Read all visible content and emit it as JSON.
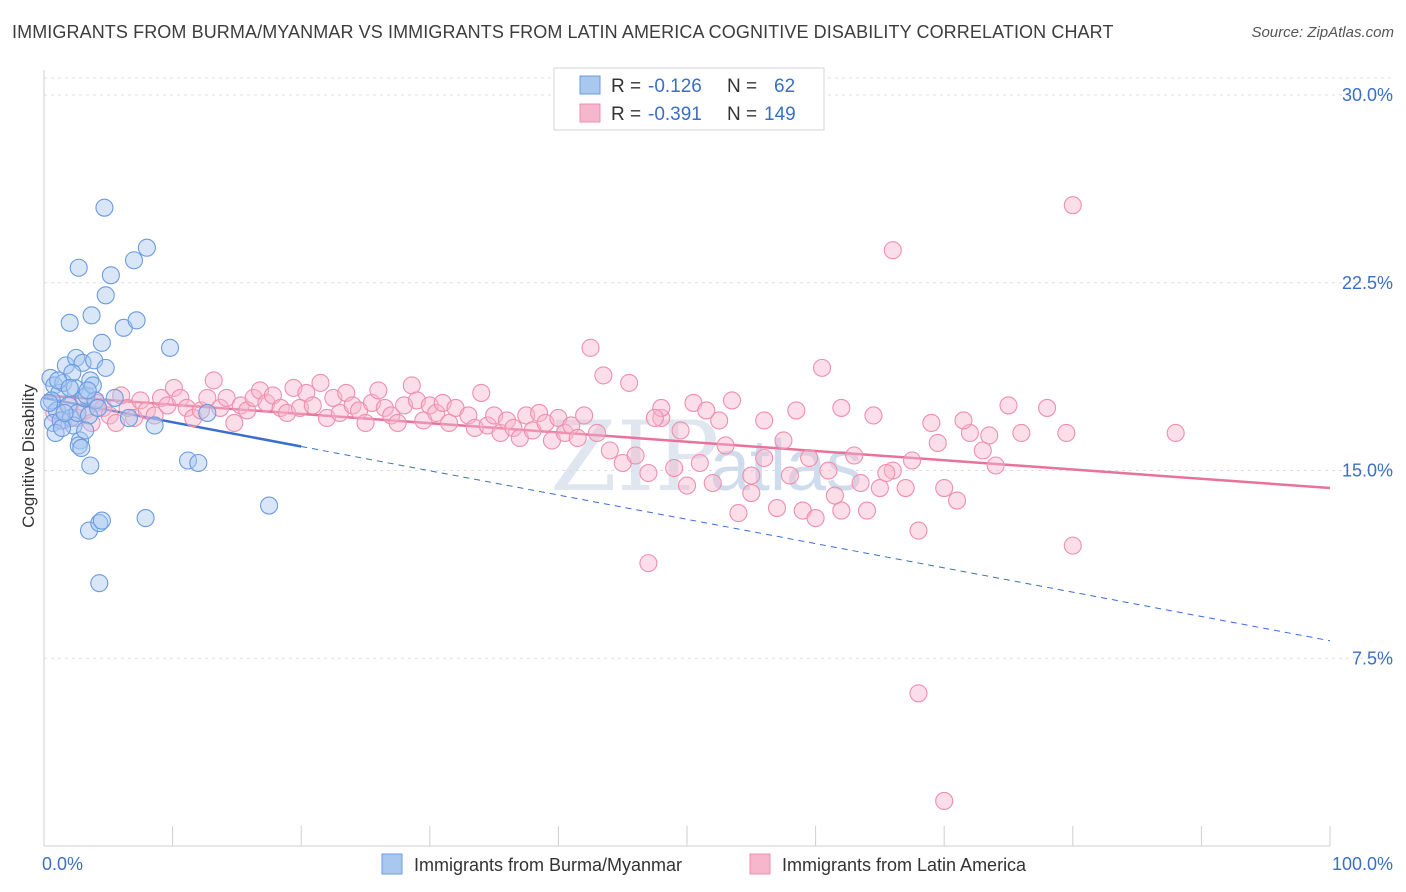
{
  "title": "IMMIGRANTS FROM BURMA/MYANMAR VS IMMIGRANTS FROM LATIN AMERICA COGNITIVE DISABILITY CORRELATION CHART",
  "source": "Source: ZipAtlas.com",
  "watermark": {
    "zip": "ZIP",
    "atlas": "atlas"
  },
  "colors": {
    "blue_fill": "#a9c8f0",
    "blue_stroke": "#6a9be0",
    "blue_line": "#3a6fd0",
    "pink_fill": "#f6b6cb",
    "pink_stroke": "#ee8fae",
    "pink_line": "#e8729a",
    "grid": "#dddddd",
    "tick_label": "#3b6fc4"
  },
  "legend": {
    "series": [
      {
        "r_label": "R =",
        "r_value": "-0.126",
        "n_label": "N =",
        "n_value": "62"
      },
      {
        "r_label": "R =",
        "r_value": "-0.391",
        "n_label": "N =",
        "n_value": "149"
      }
    ]
  },
  "chart_data": {
    "type": "scatter",
    "xlabel": "",
    "ylabel": "Cognitive Disability",
    "xlim": [
      0,
      100
    ],
    "ylim": [
      0,
      31
    ],
    "x_tick_labels": [
      "0.0%",
      "100.0%"
    ],
    "y_ticks": [
      7.5,
      15.0,
      22.5,
      30.0
    ],
    "y_tick_labels": [
      "7.5%",
      "15.0%",
      "22.5%",
      "30.0%"
    ],
    "grid": "horizontal dashed",
    "legend_position": "top-center",
    "series": [
      {
        "name": "Immigrants from Burma/Myanmar",
        "color": "#a9c8f0",
        "trend": {
          "x_start": 0,
          "y_start": 17.9,
          "x_solid_end": 20,
          "x_end": 100,
          "y_end": 8.2
        },
        "points": [
          [
            0.5,
            18.7
          ],
          [
            0.8,
            18.4
          ],
          [
            1.2,
            18.1
          ],
          [
            0.6,
            17.8
          ],
          [
            1.0,
            17.4
          ],
          [
            0.7,
            16.9
          ],
          [
            1.3,
            17.0
          ],
          [
            0.9,
            16.5
          ],
          [
            1.5,
            18.5
          ],
          [
            1.7,
            19.2
          ],
          [
            1.9,
            17.6
          ],
          [
            2.1,
            17.1
          ],
          [
            2.3,
            16.8
          ],
          [
            2.4,
            18.3
          ],
          [
            2.6,
            17.3
          ],
          [
            2.8,
            16.2
          ],
          [
            2.0,
            20.9
          ],
          [
            2.5,
            19.5
          ],
          [
            3.0,
            19.3
          ],
          [
            3.1,
            17.9
          ],
          [
            3.3,
            18.0
          ],
          [
            3.5,
            17.2
          ],
          [
            2.7,
            16.0
          ],
          [
            2.9,
            15.9
          ],
          [
            3.6,
            18.6
          ],
          [
            3.8,
            18.4
          ],
          [
            4.0,
            17.8
          ],
          [
            4.2,
            17.5
          ],
          [
            3.9,
            19.4
          ],
          [
            4.5,
            20.1
          ],
          [
            4.8,
            19.1
          ],
          [
            3.7,
            21.2
          ],
          [
            2.7,
            23.1
          ],
          [
            4.8,
            22.0
          ],
          [
            4.7,
            25.5
          ],
          [
            5.2,
            22.8
          ],
          [
            5.5,
            17.9
          ],
          [
            6.2,
            20.7
          ],
          [
            6.6,
            17.1
          ],
          [
            7.2,
            21.0
          ],
          [
            7.0,
            23.4
          ],
          [
            8.0,
            23.9
          ],
          [
            8.6,
            16.8
          ],
          [
            9.8,
            19.9
          ],
          [
            11.2,
            15.4
          ],
          [
            12.0,
            15.3
          ],
          [
            12.7,
            17.3
          ],
          [
            17.5,
            13.6
          ],
          [
            3.5,
            12.6
          ],
          [
            4.3,
            12.9
          ],
          [
            4.5,
            13.0
          ],
          [
            3.6,
            15.2
          ],
          [
            4.3,
            10.5
          ],
          [
            7.9,
            13.1
          ],
          [
            1.4,
            16.7
          ],
          [
            2.2,
            18.9
          ],
          [
            3.4,
            18.2
          ],
          [
            0.4,
            17.7
          ],
          [
            1.1,
            18.6
          ],
          [
            3.2,
            16.6
          ],
          [
            2.0,
            18.3
          ],
          [
            1.6,
            17.3
          ]
        ]
      },
      {
        "name": "Immigrants from Latin America",
        "color": "#f6b6cb",
        "trend": {
          "x_start": 0,
          "y_start": 18.0,
          "x_end": 100,
          "y_end": 14.3
        },
        "points": [
          [
            0.8,
            17.3
          ],
          [
            1.5,
            17.0
          ],
          [
            2.0,
            17.6
          ],
          [
            2.6,
            17.1
          ],
          [
            3.2,
            17.4
          ],
          [
            3.7,
            16.9
          ],
          [
            4.1,
            17.7
          ],
          [
            4.6,
            17.5
          ],
          [
            5.1,
            17.2
          ],
          [
            5.6,
            16.9
          ],
          [
            6.0,
            18.0
          ],
          [
            6.5,
            17.5
          ],
          [
            7.0,
            17.1
          ],
          [
            7.5,
            17.8
          ],
          [
            8.0,
            17.4
          ],
          [
            8.6,
            17.2
          ],
          [
            9.1,
            17.9
          ],
          [
            9.6,
            17.6
          ],
          [
            10.1,
            18.3
          ],
          [
            10.6,
            17.9
          ],
          [
            11.1,
            17.5
          ],
          [
            11.6,
            17.1
          ],
          [
            12.2,
            17.4
          ],
          [
            12.7,
            17.9
          ],
          [
            13.2,
            18.6
          ],
          [
            13.7,
            17.5
          ],
          [
            14.2,
            17.9
          ],
          [
            14.8,
            16.9
          ],
          [
            15.3,
            17.6
          ],
          [
            15.8,
            17.4
          ],
          [
            16.3,
            17.9
          ],
          [
            16.8,
            18.2
          ],
          [
            17.3,
            17.7
          ],
          [
            17.8,
            18.0
          ],
          [
            18.4,
            17.5
          ],
          [
            18.9,
            17.3
          ],
          [
            19.4,
            18.3
          ],
          [
            19.9,
            17.5
          ],
          [
            20.4,
            18.1
          ],
          [
            20.9,
            17.6
          ],
          [
            21.5,
            18.5
          ],
          [
            22.0,
            17.1
          ],
          [
            22.5,
            17.9
          ],
          [
            23.0,
            17.3
          ],
          [
            23.5,
            18.1
          ],
          [
            24.0,
            17.6
          ],
          [
            24.5,
            17.4
          ],
          [
            25.0,
            16.9
          ],
          [
            25.5,
            17.7
          ],
          [
            26.0,
            18.2
          ],
          [
            26.5,
            17.5
          ],
          [
            27.0,
            17.2
          ],
          [
            27.5,
            16.9
          ],
          [
            28.0,
            17.6
          ],
          [
            28.6,
            18.4
          ],
          [
            29.0,
            17.8
          ],
          [
            29.5,
            17.0
          ],
          [
            30.0,
            17.6
          ],
          [
            30.5,
            17.3
          ],
          [
            31.0,
            17.7
          ],
          [
            31.5,
            16.9
          ],
          [
            32.0,
            17.5
          ],
          [
            33.0,
            17.2
          ],
          [
            33.5,
            16.7
          ],
          [
            34.0,
            18.1
          ],
          [
            34.5,
            16.8
          ],
          [
            35.0,
            17.2
          ],
          [
            35.5,
            16.5
          ],
          [
            36.0,
            17.0
          ],
          [
            36.5,
            16.7
          ],
          [
            37.0,
            16.3
          ],
          [
            37.5,
            17.2
          ],
          [
            38.0,
            16.6
          ],
          [
            38.5,
            17.3
          ],
          [
            39.0,
            16.9
          ],
          [
            39.5,
            16.2
          ],
          [
            40.0,
            17.1
          ],
          [
            40.5,
            16.5
          ],
          [
            41.0,
            16.8
          ],
          [
            41.5,
            16.3
          ],
          [
            42.0,
            17.2
          ],
          [
            43.0,
            16.5
          ],
          [
            44.0,
            15.8
          ],
          [
            45.0,
            15.3
          ],
          [
            46.0,
            15.6
          ],
          [
            47.0,
            14.9
          ],
          [
            48.0,
            17.1
          ],
          [
            49.0,
            15.1
          ],
          [
            50.0,
            14.4
          ],
          [
            51.0,
            15.3
          ],
          [
            52.0,
            14.5
          ],
          [
            53.0,
            16.0
          ],
          [
            54.0,
            13.3
          ],
          [
            55.0,
            14.1
          ],
          [
            56.0,
            15.5
          ],
          [
            57.0,
            13.5
          ],
          [
            58.0,
            14.8
          ],
          [
            59.0,
            13.4
          ],
          [
            60.0,
            13.1
          ],
          [
            61.0,
            15.0
          ],
          [
            62.0,
            13.4
          ],
          [
            63.0,
            15.6
          ],
          [
            64.0,
            13.4
          ],
          [
            65.0,
            14.3
          ],
          [
            66.0,
            15.0
          ],
          [
            67.0,
            14.3
          ],
          [
            68.0,
            12.6
          ],
          [
            69.0,
            16.9
          ],
          [
            70.0,
            14.3
          ],
          [
            71.0,
            13.8
          ],
          [
            72.0,
            16.5
          ],
          [
            73.0,
            15.8
          ],
          [
            74.0,
            15.2
          ],
          [
            75.0,
            17.6
          ],
          [
            76.0,
            16.5
          ],
          [
            78.0,
            17.5
          ],
          [
            80.0,
            25.6
          ],
          [
            88.0,
            16.5
          ],
          [
            66.0,
            23.8
          ],
          [
            68.0,
            6.1
          ],
          [
            70.0,
            1.8
          ],
          [
            47.0,
            11.3
          ],
          [
            80.0,
            12.0
          ],
          [
            79.5,
            16.5
          ],
          [
            48.0,
            17.5
          ],
          [
            50.5,
            17.7
          ],
          [
            52.5,
            17.0
          ],
          [
            56.0,
            17.0
          ],
          [
            58.5,
            17.4
          ],
          [
            60.5,
            19.1
          ],
          [
            62.0,
            17.5
          ],
          [
            64.5,
            17.2
          ],
          [
            42.5,
            19.9
          ],
          [
            43.5,
            18.8
          ],
          [
            45.5,
            18.5
          ],
          [
            47.5,
            17.1
          ],
          [
            49.5,
            16.6
          ],
          [
            51.5,
            17.4
          ],
          [
            53.5,
            17.8
          ],
          [
            55.0,
            14.8
          ],
          [
            57.5,
            16.2
          ],
          [
            59.5,
            15.5
          ],
          [
            61.5,
            14.0
          ],
          [
            63.5,
            14.5
          ],
          [
            65.5,
            14.9
          ],
          [
            67.5,
            15.4
          ],
          [
            69.5,
            16.1
          ],
          [
            71.5,
            17.0
          ],
          [
            73.5,
            16.4
          ]
        ]
      }
    ]
  }
}
